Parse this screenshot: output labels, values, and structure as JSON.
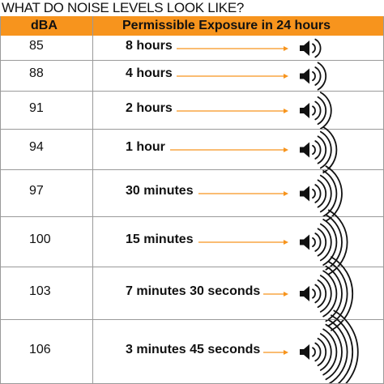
{
  "title": "WHAT DO NOISE LEVELS LOOK LIKE?",
  "header": {
    "dba_label": "dBA",
    "exposure_label": "Permissible Exposure in 24 hours"
  },
  "accent_color": "#f7941d",
  "icon": "speaker-icon",
  "rows": [
    {
      "dba": "85",
      "exposure": "8 hours",
      "sound_waves": 2
    },
    {
      "dba": "88",
      "exposure": "4 hours",
      "sound_waves": 3
    },
    {
      "dba": "91",
      "exposure": "2 hours",
      "sound_waves": 4
    },
    {
      "dba": "94",
      "exposure": "1 hour",
      "sound_waves": 5
    },
    {
      "dba": "97",
      "exposure": "30 minutes",
      "sound_waves": 6
    },
    {
      "dba": "100",
      "exposure": "15 minutes",
      "sound_waves": 7
    },
    {
      "dba": "103",
      "exposure": "7 minutes 30 seconds",
      "sound_waves": 8
    },
    {
      "dba": "106",
      "exposure": "3 minutes 45 seconds",
      "sound_waves": 9
    }
  ]
}
